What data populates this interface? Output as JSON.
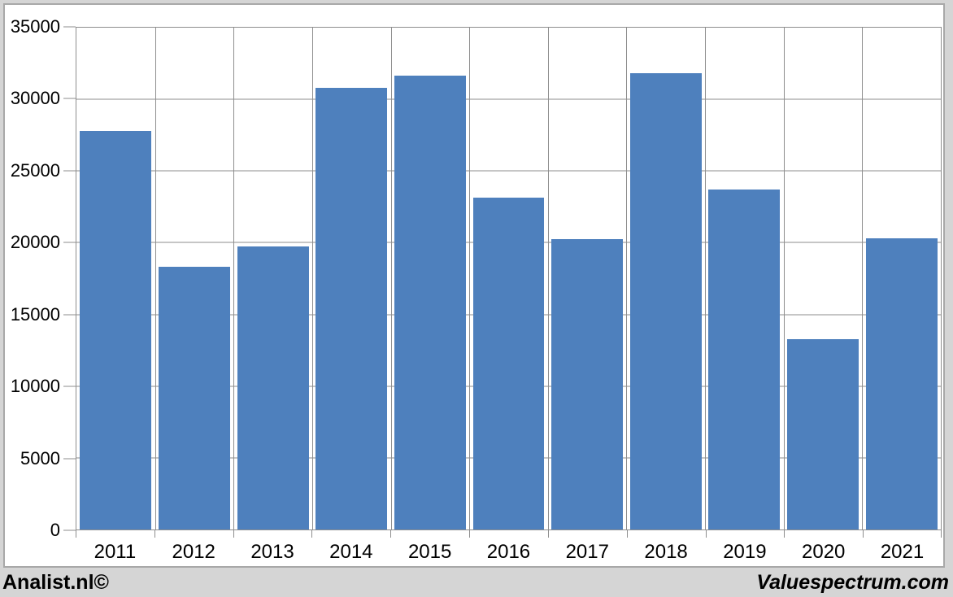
{
  "chart_data": {
    "type": "bar",
    "categories": [
      "2011",
      "2012",
      "2013",
      "2014",
      "2015",
      "2016",
      "2017",
      "2018",
      "2019",
      "2020",
      "2021"
    ],
    "values": [
      27800,
      18300,
      19750,
      30800,
      31650,
      23150,
      20250,
      31850,
      23700,
      13250,
      20300
    ],
    "title": "",
    "xlabel": "",
    "ylabel": "",
    "ylim": [
      0,
      35000
    ],
    "yticks": [
      0,
      5000,
      10000,
      15000,
      20000,
      25000,
      30000,
      35000
    ],
    "grid": true,
    "legend": null,
    "bar_color": "#4e80bd",
    "grid_color": "#8e8e8e",
    "background_color": "#d5d5d5",
    "card_border_color": "#a8a8a8"
  },
  "branding": {
    "left": "Analist.nl©",
    "right": "Valuespectrum.com"
  }
}
